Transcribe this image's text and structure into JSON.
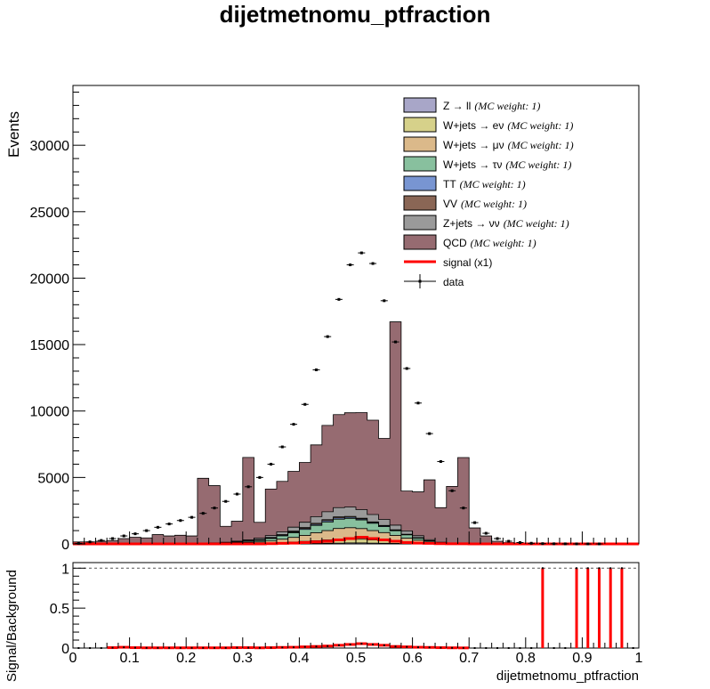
{
  "chart_data": [
    {
      "type": "bar",
      "stacked": true,
      "title": "dijetmetnomu_ptfraction",
      "ylabel": "Events",
      "xlim": [
        0,
        1
      ],
      "ylim": [
        0,
        34500
      ],
      "yticks": [
        0,
        5000,
        10000,
        15000,
        20000,
        25000,
        30000
      ],
      "bins": {
        "start": 0.0,
        "width": 0.02,
        "count": 50
      },
      "legend_position": "top-right",
      "legend": [
        {
          "label": "Z → ll",
          "note": "(MC weight: 1)",
          "color": "#a8a6c8",
          "kind": "fill"
        },
        {
          "label": "W+jets → eν",
          "note": "(MC weight: 1)",
          "color": "#d6d18a",
          "kind": "fill"
        },
        {
          "label": "W+jets → μν",
          "note": "(MC weight: 1)",
          "color": "#dbb98a",
          "kind": "fill"
        },
        {
          "label": "W+jets → τν",
          "note": "(MC weight: 1)",
          "color": "#88c09e",
          "kind": "fill"
        },
        {
          "label": "TT",
          "note": "(MC weight: 1)",
          "color": "#7895d2",
          "kind": "fill"
        },
        {
          "label": "VV",
          "note": "(MC weight: 1)",
          "color": "#8a6655",
          "kind": "fill"
        },
        {
          "label": "Z+jets → νν",
          "note": "(MC weight: 1)",
          "color": "#9a9a9a",
          "kind": "fill"
        },
        {
          "label": "QCD",
          "note": "(MC weight: 1)",
          "color": "#966b71",
          "kind": "fill"
        },
        {
          "label": "signal (x1)",
          "note": "",
          "color": "#ff0000",
          "kind": "line"
        },
        {
          "label": "data",
          "note": "",
          "color": "#000000",
          "kind": "marker"
        }
      ],
      "series": [
        {
          "name": "Z → ll",
          "values": [
            0,
            0,
            0,
            0,
            0,
            0,
            0,
            0,
            0,
            0,
            0,
            0,
            0,
            0,
            0,
            0,
            5,
            10,
            15,
            20,
            30,
            40,
            50,
            60,
            70,
            70,
            60,
            50,
            40,
            30,
            20,
            10,
            5,
            0,
            0,
            0,
            0,
            0,
            0,
            0,
            0,
            0,
            0,
            0,
            0,
            0,
            0,
            0,
            0,
            0
          ]
        },
        {
          "name": "W+jets → eν",
          "values": [
            0,
            0,
            0,
            0,
            0,
            0,
            0,
            0,
            0,
            0,
            0,
            0,
            10,
            10,
            20,
            30,
            40,
            60,
            90,
            120,
            160,
            200,
            250,
            300,
            300,
            280,
            240,
            200,
            150,
            100,
            60,
            30,
            10,
            0,
            0,
            0,
            0,
            0,
            0,
            0,
            0,
            0,
            0,
            0,
            0,
            0,
            0,
            0,
            0,
            0
          ]
        },
        {
          "name": "W+jets → μν",
          "values": [
            0,
            0,
            0,
            0,
            0,
            0,
            0,
            0,
            0,
            0,
            0,
            10,
            20,
            30,
            50,
            80,
            100,
            150,
            250,
            350,
            450,
            600,
            700,
            800,
            850,
            800,
            700,
            600,
            450,
            300,
            200,
            100,
            40,
            10,
            0,
            0,
            0,
            0,
            0,
            0,
            0,
            0,
            0,
            0,
            0,
            0,
            0,
            0,
            0,
            0
          ]
        },
        {
          "name": "W+jets → τν",
          "values": [
            0,
            0,
            0,
            0,
            0,
            0,
            0,
            0,
            0,
            0,
            0,
            10,
            20,
            30,
            50,
            80,
            120,
            180,
            250,
            350,
            450,
            550,
            650,
            700,
            700,
            650,
            550,
            450,
            350,
            250,
            150,
            80,
            30,
            10,
            0,
            0,
            0,
            0,
            0,
            0,
            0,
            0,
            0,
            0,
            0,
            0,
            0,
            0,
            0,
            0
          ]
        },
        {
          "name": "TT",
          "values": [
            0,
            0,
            0,
            0,
            0,
            0,
            0,
            0,
            0,
            0,
            0,
            0,
            5,
            10,
            15,
            20,
            30,
            40,
            50,
            60,
            70,
            80,
            90,
            90,
            80,
            70,
            60,
            50,
            40,
            30,
            20,
            10,
            5,
            0,
            0,
            0,
            0,
            0,
            0,
            0,
            0,
            0,
            0,
            0,
            0,
            0,
            0,
            0,
            0,
            0
          ]
        },
        {
          "name": "VV",
          "values": [
            0,
            0,
            0,
            0,
            0,
            0,
            0,
            0,
            0,
            0,
            0,
            5,
            10,
            15,
            20,
            25,
            30,
            40,
            50,
            60,
            70,
            80,
            80,
            80,
            70,
            60,
            50,
            40,
            30,
            20,
            15,
            10,
            5,
            0,
            0,
            0,
            0,
            0,
            0,
            0,
            0,
            0,
            0,
            0,
            0,
            0,
            0,
            0,
            0,
            0
          ]
        },
        {
          "name": "Z+jets → νν",
          "values": [
            0,
            0,
            0,
            0,
            0,
            0,
            0,
            0,
            0,
            0,
            0,
            10,
            20,
            30,
            50,
            70,
            100,
            150,
            200,
            300,
            400,
            500,
            600,
            700,
            700,
            650,
            550,
            450,
            350,
            250,
            150,
            80,
            30,
            10,
            0,
            0,
            0,
            0,
            0,
            0,
            0,
            0,
            0,
            0,
            0,
            0,
            0,
            0,
            0,
            0
          ]
        },
        {
          "name": "QCD",
          "values": [
            150,
            150,
            200,
            250,
            400,
            500,
            450,
            700,
            600,
            650,
            600,
            4900,
            4300,
            1200,
            1500,
            6200,
            1200,
            3500,
            3800,
            4200,
            4500,
            5400,
            6500,
            7000,
            7100,
            7300,
            7100,
            6100,
            15300,
            3000,
            3300,
            4500,
            2600,
            4300,
            6500,
            1200,
            600,
            200,
            100,
            40,
            20,
            10,
            5,
            5,
            2,
            2,
            1,
            1,
            1,
            1
          ]
        },
        {
          "name": "signal (x1)",
          "values": [
            0,
            0,
            0,
            0,
            0,
            0,
            0,
            0,
            0,
            0,
            0,
            0,
            0,
            0,
            0,
            0,
            0,
            20,
            40,
            60,
            100,
            150,
            200,
            300,
            400,
            500,
            400,
            300,
            200,
            100,
            60,
            40,
            20,
            10,
            5,
            0,
            0,
            0,
            0,
            0,
            0,
            0,
            0,
            0,
            0,
            0,
            0,
            0,
            0,
            0
          ]
        }
      ],
      "data": {
        "name": "data",
        "values": [
          40,
          150,
          260,
          400,
          600,
          760,
          1000,
          1250,
          1500,
          1760,
          2000,
          2300,
          2700,
          3200,
          3750,
          4300,
          5000,
          6000,
          7300,
          9000,
          10500,
          13100,
          15600,
          18400,
          21000,
          21900,
          21100,
          18300,
          15200,
          13200,
          10600,
          8300,
          6200,
          4000,
          2700,
          1600,
          800,
          400,
          200,
          100,
          50,
          20,
          10,
          5,
          2,
          1,
          1,
          0,
          0,
          0
        ]
      }
    },
    {
      "type": "bar",
      "title": "",
      "ylabel": "Signal/Background",
      "xlabel": "dijetmetnomu_ptfraction",
      "xlim": [
        0,
        1
      ],
      "ylim": [
        0,
        1.07
      ],
      "yticks": [
        0,
        0.5,
        1
      ],
      "ytick_labels": [
        "0",
        "0.5",
        "1"
      ],
      "xticks": [
        0,
        0.1,
        0.2,
        0.3,
        0.4,
        0.5,
        0.6,
        0.7,
        0.8,
        0.9,
        1
      ],
      "xtick_labels": [
        "0",
        "0.1",
        "0.2",
        "0.3",
        "0.4",
        "0.5",
        "0.6",
        "0.7",
        "0.8",
        "0.9",
        "1"
      ],
      "reference_line": 1,
      "bins": {
        "start": 0.0,
        "width": 0.02,
        "count": 50
      },
      "values": [
        0,
        0,
        0,
        0.005,
        0.01,
        0.005,
        0.003,
        0.003,
        0.003,
        0.003,
        0.003,
        0.003,
        0.003,
        0.003,
        0.005,
        0.005,
        0.003,
        0.005,
        0.008,
        0.01,
        0.015,
        0.02,
        0.025,
        0.035,
        0.045,
        0.055,
        0.045,
        0.035,
        0.02,
        0.015,
        0.01,
        0.008,
        0.005,
        0.003,
        0.002,
        0,
        0,
        0,
        0,
        0,
        0,
        1,
        0,
        0,
        1,
        1,
        1,
        1,
        1,
        0
      ]
    }
  ]
}
